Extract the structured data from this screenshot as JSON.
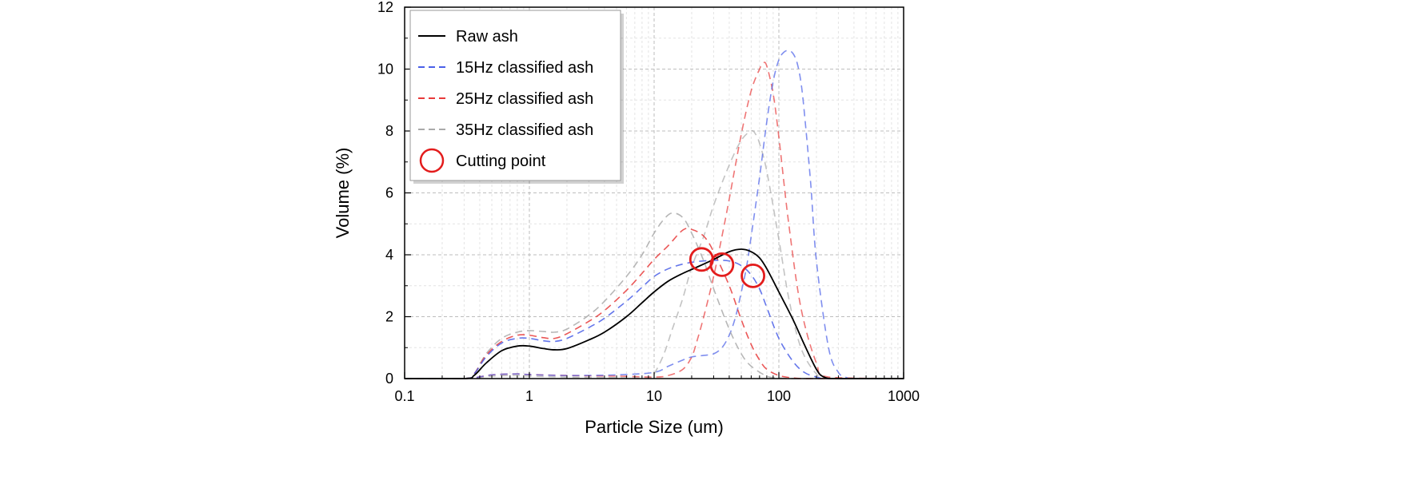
{
  "chart_data": {
    "type": "line",
    "title": "",
    "xlabel": "Particle Size (um)",
    "ylabel": "Volume (%)",
    "xscale": "log",
    "xlim": [
      0.1,
      1000
    ],
    "ylim": [
      0,
      12
    ],
    "xticks": [
      0.1,
      1,
      10,
      100,
      1000
    ],
    "xtick_labels": [
      "0.1",
      "1",
      "10",
      "100",
      "1000"
    ],
    "yticks": [
      0,
      2,
      4,
      6,
      8,
      10,
      12
    ],
    "ytick_labels": [
      "0",
      "2",
      "4",
      "6",
      "8",
      "10",
      "12"
    ],
    "grid": true,
    "legend_position": "top-left",
    "series": [
      {
        "name": "Raw ash",
        "color": "#000000",
        "dash": "solid",
        "x": [
          0.1,
          0.3,
          0.36,
          0.45,
          0.6,
          0.8,
          1.0,
          1.3,
          1.6,
          2.0,
          3.0,
          4.0,
          6.0,
          8.0,
          10,
          13,
          17,
          22,
          30,
          40,
          50,
          60,
          70,
          80,
          100,
          130,
          160,
          200,
          230,
          300,
          1000
        ],
        "y": [
          0,
          0,
          0.1,
          0.5,
          0.9,
          1.05,
          1.05,
          0.97,
          0.93,
          0.97,
          1.25,
          1.5,
          2.0,
          2.45,
          2.8,
          3.15,
          3.4,
          3.6,
          3.85,
          4.1,
          4.18,
          4.1,
          3.9,
          3.55,
          2.8,
          1.9,
          1.1,
          0.3,
          0.05,
          0,
          0
        ]
      },
      {
        "name": "15Hz classified ash",
        "color": "#4a5fe8",
        "dash": "dashed",
        "x": [
          0.1,
          0.3,
          0.36,
          0.45,
          0.6,
          0.8,
          1.0,
          1.3,
          1.6,
          2.0,
          3.0,
          4.0,
          6.0,
          8.0,
          10,
          13,
          17,
          22,
          30,
          40,
          50,
          60,
          70,
          80,
          100,
          130,
          160,
          200,
          230,
          300,
          1000
        ],
        "y": [
          0,
          0,
          0.15,
          0.7,
          1.15,
          1.3,
          1.3,
          1.22,
          1.2,
          1.3,
          1.65,
          1.95,
          2.5,
          2.95,
          3.3,
          3.55,
          3.7,
          3.78,
          3.82,
          3.8,
          3.65,
          3.35,
          2.9,
          2.3,
          1.3,
          0.55,
          0.2,
          0.05,
          0,
          0,
          0
        ]
      },
      {
        "name": "25Hz classified ash",
        "color": "#e83a3a",
        "dash": "dashed",
        "x": [
          0.1,
          0.3,
          0.36,
          0.45,
          0.6,
          0.8,
          1.0,
          1.3,
          1.6,
          2.0,
          3.0,
          4.0,
          6.0,
          8.0,
          10,
          13,
          17,
          20,
          25,
          30,
          40,
          50,
          60,
          70,
          80,
          100,
          130,
          160,
          200,
          300,
          1000
        ],
        "y": [
          0,
          0,
          0.15,
          0.75,
          1.2,
          1.4,
          1.4,
          1.32,
          1.3,
          1.45,
          1.85,
          2.2,
          2.85,
          3.4,
          3.85,
          4.3,
          4.8,
          4.82,
          4.6,
          4.1,
          3.0,
          1.9,
          1.1,
          0.6,
          0.3,
          0.1,
          0.02,
          0,
          0,
          0,
          0
        ]
      },
      {
        "name": "35Hz classified ash",
        "color": "#aaaaaa",
        "dash": "dashed",
        "x": [
          0.1,
          0.3,
          0.36,
          0.45,
          0.6,
          0.8,
          1.0,
          1.3,
          1.6,
          2.0,
          3.0,
          4.0,
          6.0,
          8.0,
          10,
          12,
          14,
          17,
          20,
          25,
          30,
          40,
          50,
          60,
          80,
          100,
          130,
          200,
          1000
        ],
        "y": [
          0,
          0,
          0.15,
          0.8,
          1.3,
          1.5,
          1.55,
          1.52,
          1.5,
          1.6,
          2.05,
          2.5,
          3.3,
          4.0,
          4.7,
          5.15,
          5.35,
          5.2,
          4.7,
          3.8,
          2.9,
          1.6,
          0.8,
          0.4,
          0.08,
          0.02,
          0,
          0,
          0
        ]
      },
      {
        "name": "",
        "color": "#4a5fe8",
        "dash": "dashed",
        "x": [
          0.1,
          0.3,
          0.5,
          0.8,
          1.0,
          2.0,
          5.0,
          10,
          13,
          17,
          20,
          25,
          30,
          35,
          40,
          45,
          50,
          55,
          60,
          70,
          80,
          90,
          100,
          110,
          120,
          130,
          140,
          150,
          160,
          180,
          200,
          250,
          300,
          350,
          400,
          1000
        ],
        "y": [
          0,
          0,
          0.12,
          0.15,
          0.13,
          0.1,
          0.12,
          0.2,
          0.4,
          0.6,
          0.7,
          0.75,
          0.8,
          1.0,
          1.4,
          2.0,
          2.8,
          3.6,
          4.6,
          6.5,
          8.3,
          9.6,
          10.3,
          10.55,
          10.6,
          10.5,
          10.2,
          9.6,
          8.6,
          6.3,
          3.8,
          1.0,
          0.2,
          0.03,
          0,
          0
        ]
      },
      {
        "name": "",
        "color": "#e83a3a",
        "dash": "dashed",
        "x": [
          0.1,
          0.3,
          0.5,
          0.8,
          1.0,
          2.0,
          5.0,
          10,
          13,
          17,
          20,
          22,
          25,
          30,
          35,
          40,
          50,
          60,
          70,
          75,
          80,
          90,
          100,
          120,
          150,
          200,
          250,
          1000
        ],
        "y": [
          0,
          0,
          0.12,
          0.15,
          0.13,
          0.1,
          0.08,
          0.05,
          0.1,
          0.3,
          0.7,
          1.2,
          2.0,
          3.3,
          4.6,
          5.8,
          7.9,
          9.3,
          10.0,
          10.2,
          10.1,
          9.2,
          7.8,
          5.0,
          2.3,
          0.5,
          0.05,
          0
        ]
      },
      {
        "name": "",
        "color": "#aaaaaa",
        "dash": "dashed",
        "x": [
          0.1,
          0.3,
          0.5,
          0.8,
          1.0,
          2.0,
          5.0,
          9.0,
          10,
          12,
          14,
          17,
          20,
          25,
          30,
          40,
          50,
          60,
          65,
          70,
          80,
          100,
          120,
          150,
          200,
          250,
          1000
        ],
        "y": [
          0,
          0,
          0.08,
          0.1,
          0.08,
          0.05,
          0.03,
          0.02,
          0.15,
          0.8,
          1.6,
          2.6,
          3.6,
          4.6,
          5.6,
          6.9,
          7.7,
          8.0,
          7.9,
          7.6,
          6.7,
          4.5,
          2.6,
          1.0,
          0.15,
          0.02,
          0
        ]
      }
    ],
    "cutting_points": {
      "name": "Cutting point",
      "color": "#e31c1c",
      "points": [
        {
          "x": 24,
          "y": 3.85
        },
        {
          "x": 35,
          "y": 3.68
        },
        {
          "x": 62,
          "y": 3.32
        }
      ]
    }
  }
}
